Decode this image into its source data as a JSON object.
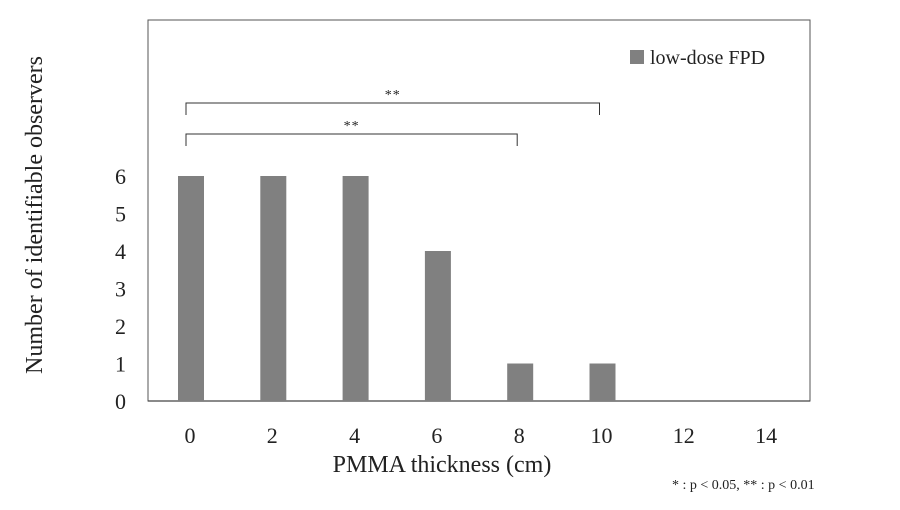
{
  "chart_data": {
    "type": "bar",
    "categories": [
      "0",
      "2",
      "4",
      "6",
      "8",
      "10",
      "12",
      "14"
    ],
    "series": [
      {
        "name": "low-dose FPD",
        "values": [
          6,
          6,
          6,
          4,
          1,
          1,
          0,
          0
        ],
        "color": "#808080"
      }
    ],
    "title": "",
    "xlabel": "PMMA thickness (cm)",
    "ylabel": "Number of identifiable observers",
    "ylim": [
      0,
      6
    ],
    "yticks": [
      "0",
      "1",
      "2",
      "3",
      "4",
      "5",
      "6"
    ],
    "grid": false,
    "legend_position": "top-right",
    "significance": [
      {
        "from": "0",
        "to": "10",
        "label": "**"
      },
      {
        "from": "0",
        "to": "8",
        "label": "**"
      }
    ],
    "footnote": "* : p < 0.05, ** : p < 0.01"
  }
}
